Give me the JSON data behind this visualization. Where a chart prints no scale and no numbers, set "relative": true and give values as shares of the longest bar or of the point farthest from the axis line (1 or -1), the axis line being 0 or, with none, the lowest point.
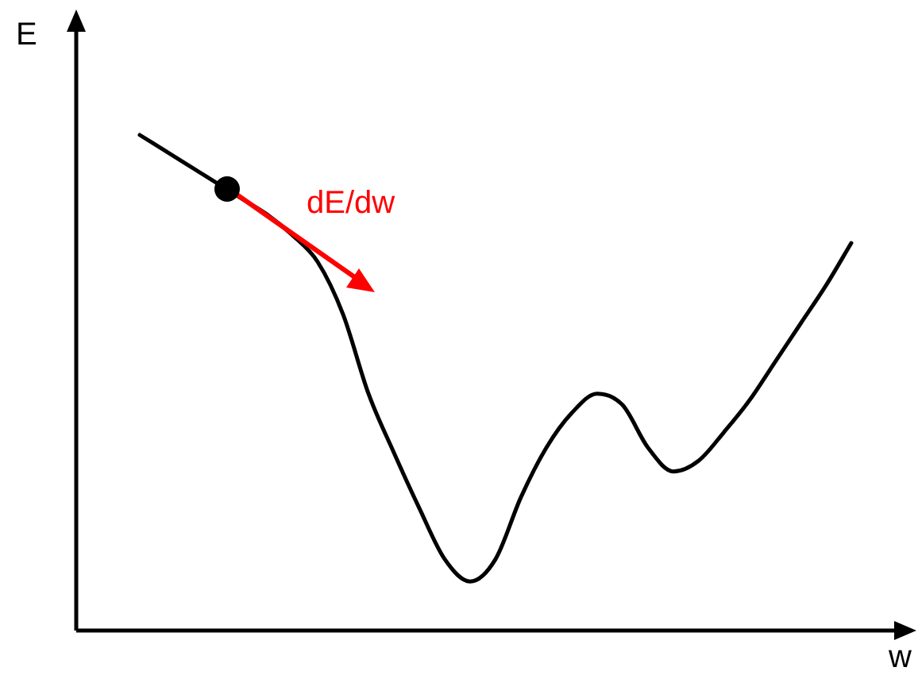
{
  "chart_data": {
    "type": "line",
    "xlabel": "w",
    "ylabel": "E",
    "relative": true,
    "marker": "none",
    "categories": [
      null,
      null,
      null,
      null,
      null,
      null,
      null,
      null,
      null,
      null,
      null,
      null,
      null,
      null,
      null,
      null,
      null,
      null,
      null,
      null,
      null,
      null,
      null,
      null,
      null,
      null,
      null,
      null,
      null
    ],
    "series": [
      {
        "color": "#000000",
        "values": [
          1,
          0.968,
          0.936,
          0.904,
          0.872,
          0.84,
          0.798,
          0.744,
          0.638,
          0.478,
          0.359,
          0.247,
          0.144,
          0.099,
          0.144,
          0.269,
          0.369,
          0.439,
          0.478,
          0.455,
          0.369,
          0.321,
          0.343,
          0.401,
          0.465,
          0.542,
          0.619,
          0.696,
          0.782
        ]
      }
    ],
    "annotations": [
      "dE/dw"
    ]
  }
}
